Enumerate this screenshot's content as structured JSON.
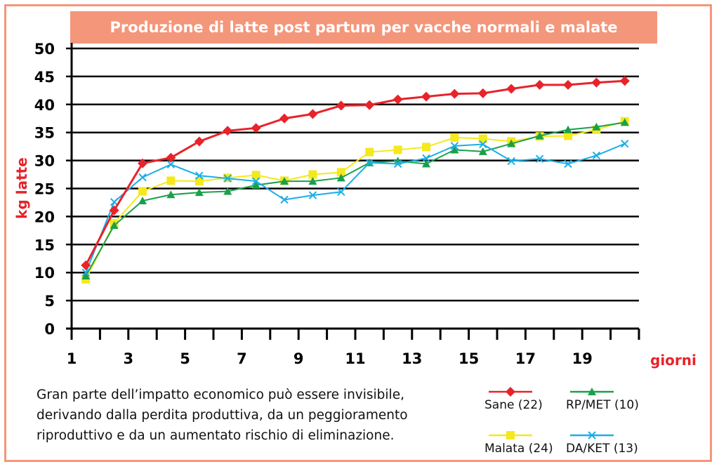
{
  "chart_data": {
    "type": "line",
    "title": "Produzione di latte post partum per vacche normali e malate",
    "xlabel": "giorni",
    "ylabel": "kg latte",
    "xlim": [
      1,
      21
    ],
    "ylim": [
      0,
      50
    ],
    "x_ticks": [
      1,
      3,
      5,
      7,
      9,
      11,
      13,
      15,
      17,
      19
    ],
    "y_ticks": [
      0,
      5,
      10,
      15,
      20,
      25,
      30,
      35,
      40,
      45,
      50
    ],
    "grid": true,
    "legend_position": "bottom-right",
    "x": [
      1.5,
      2.5,
      3.5,
      4.5,
      5.5,
      6.5,
      7.5,
      8.5,
      9.5,
      10.5,
      11.5,
      12.5,
      13.5,
      14.5,
      15.5,
      16.5,
      17.5,
      18.5,
      19.5,
      20.5
    ],
    "series": [
      {
        "name": "Sane (22)",
        "color": "#E8232A",
        "marker": "diamond",
        "values": [
          11.3,
          21.1,
          29.5,
          30.5,
          33.4,
          35.3,
          35.8,
          37.5,
          38.3,
          39.8,
          39.9,
          40.9,
          41.4,
          41.9,
          42.0,
          42.8,
          43.5,
          43.5,
          43.9,
          44.2
        ]
      },
      {
        "name": "RP/MET (10)",
        "color": "#1AA04A",
        "marker": "triangle",
        "values": [
          9.4,
          18.4,
          22.8,
          23.9,
          24.3,
          24.5,
          25.6,
          26.3,
          26.3,
          26.9,
          29.6,
          29.9,
          29.4,
          31.9,
          31.6,
          33.0,
          34.4,
          35.5,
          36.0,
          36.8
        ]
      },
      {
        "name": "Malata (24)",
        "color": "#F5E81C",
        "marker": "square",
        "values": [
          8.8,
          18.8,
          24.5,
          26.4,
          26.3,
          26.9,
          27.4,
          26.4,
          27.5,
          27.9,
          31.5,
          31.9,
          32.4,
          34.1,
          33.9,
          33.4,
          34.3,
          34.4,
          35.5,
          37.0
        ]
      },
      {
        "name": "DA/KET (13)",
        "color": "#1AAEE8",
        "marker": "x",
        "values": [
          10.0,
          22.6,
          27.0,
          29.3,
          27.3,
          26.8,
          26.3,
          23.0,
          23.8,
          24.4,
          29.6,
          29.4,
          30.4,
          32.6,
          32.9,
          29.9,
          30.3,
          29.4,
          30.9,
          33.0
        ]
      }
    ]
  },
  "caption": "Gran parte dell’impatto economico può essere invisibile, derivando dalla perdita produttiva, da un peggioramento riproduttivo e da un aumentato rischio di eliminazione.",
  "accent_color": "#F4967A"
}
